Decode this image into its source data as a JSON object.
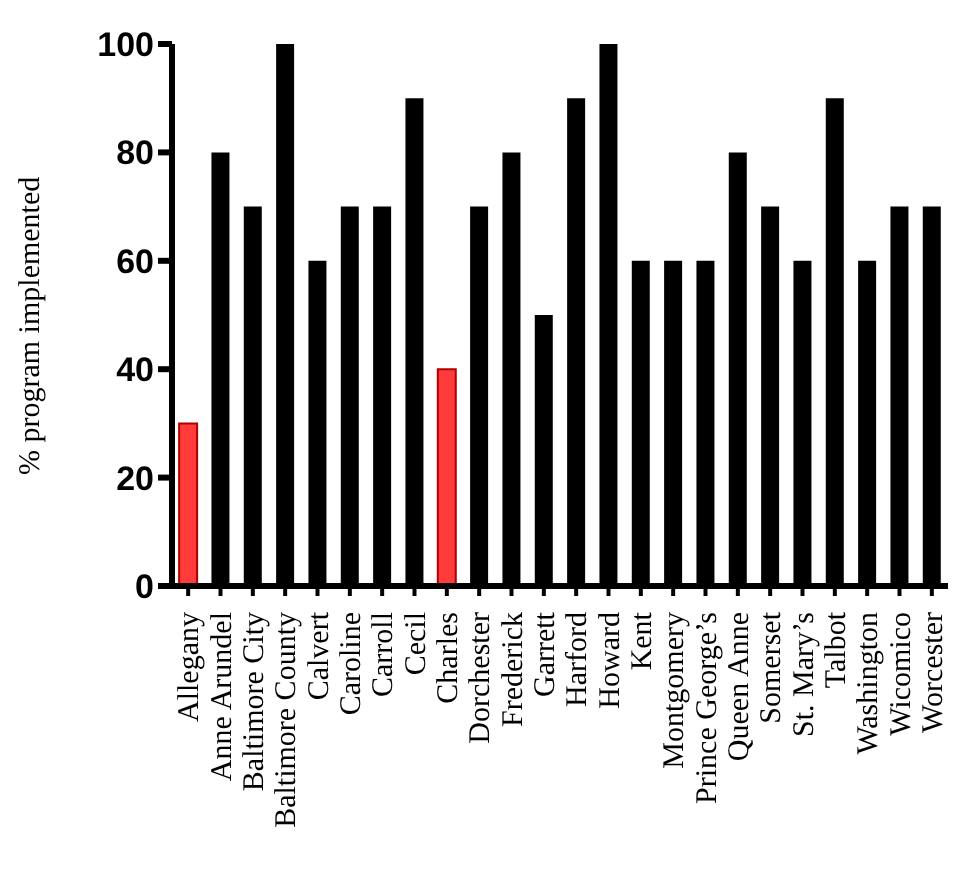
{
  "chart_data": {
    "type": "bar",
    "ylabel": "% program implemented",
    "categories": [
      "Allegany",
      "Anne Arundel",
      "Baltimore City",
      "Baltimore County",
      "Calvert",
      "Caroline",
      "Carroll",
      "Cecil",
      "Charles",
      "Dorchester",
      "Frederick",
      "Garrett",
      "Harford",
      "Howard",
      "Kent",
      "Montgomery",
      "Prince George’s",
      "Queen Anne",
      "Somerset",
      "St. Mary’s",
      "Talbot",
      "Washington",
      "Wicomico",
      "Worcester"
    ],
    "values": [
      30,
      80,
      70,
      100,
      60,
      70,
      70,
      90,
      40,
      70,
      80,
      50,
      90,
      100,
      60,
      60,
      60,
      80,
      70,
      60,
      90,
      60,
      70,
      70
    ],
    "colors": [
      "#ff3b3b",
      "#000000",
      "#000000",
      "#000000",
      "#000000",
      "#000000",
      "#000000",
      "#000000",
      "#ff3b3b",
      "#000000",
      "#000000",
      "#000000",
      "#000000",
      "#000000",
      "#000000",
      "#000000",
      "#000000",
      "#000000",
      "#000000",
      "#000000",
      "#000000",
      "#000000",
      "#000000",
      "#000000"
    ],
    "ylim": [
      0,
      100
    ],
    "yticks": [
      0,
      20,
      40,
      60,
      80,
      100
    ],
    "grid": false,
    "legend": false
  }
}
